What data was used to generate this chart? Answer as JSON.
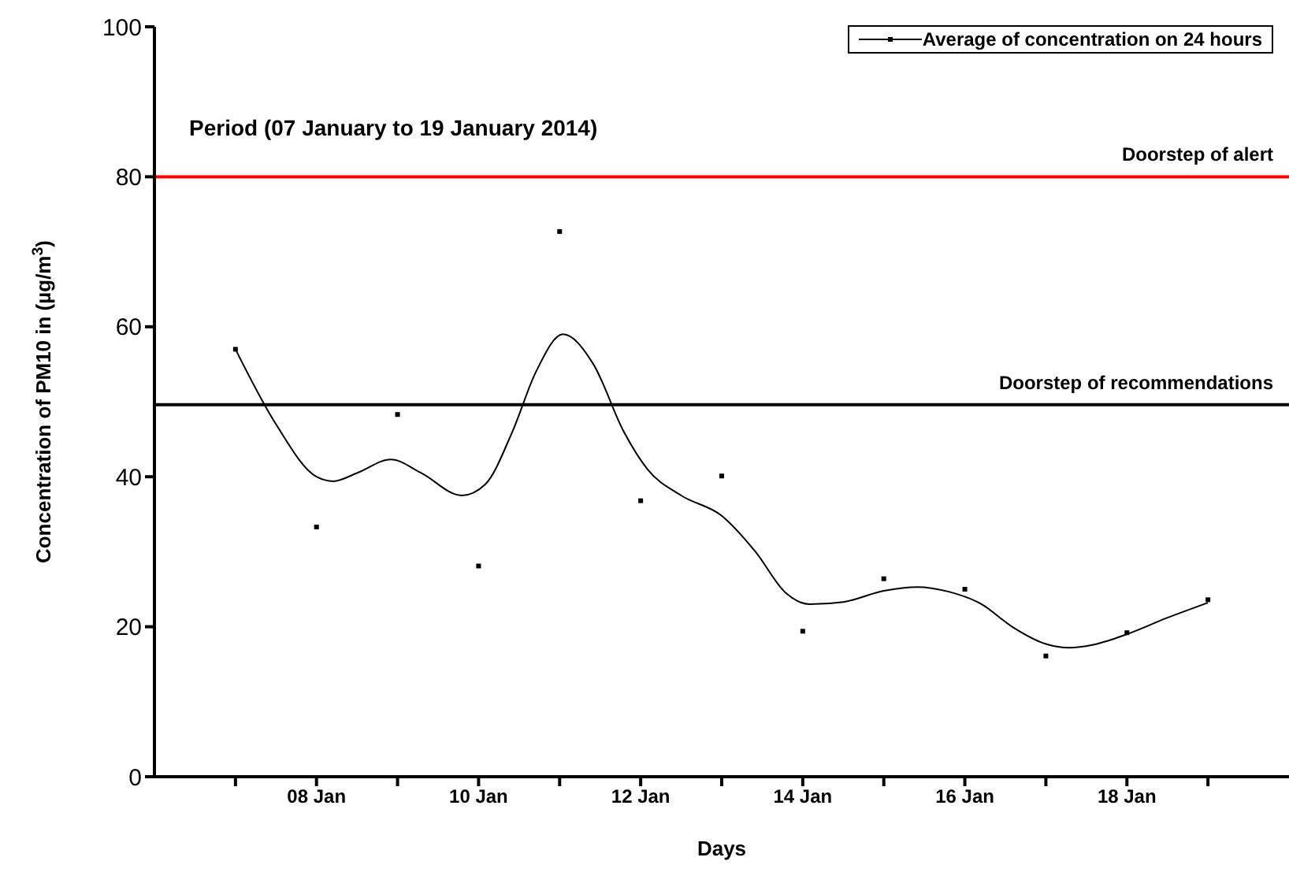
{
  "chart_data": {
    "type": "scatter",
    "xlabel": "Days",
    "ylabel": "Concentration of PM10 in (µg/m$^{3}$)",
    "annotations": [
      "Period (07 January to 19 January 2014)"
    ],
    "x": [
      "2014-01-07",
      "2014-01-08",
      "2014-01-09",
      "2014-01-10",
      "2014-01-11",
      "2014-01-12",
      "2014-01-13",
      "2014-01-14",
      "2014-01-15",
      "2014-01-16",
      "2014-01-17",
      "2014-01-18",
      "2014-01-19"
    ],
    "series": [
      {
        "name": "Average of concentration on 24 hours",
        "type": "scatter",
        "color": "#000000",
        "marker": "square",
        "values": [
          57,
          33.3,
          48.3,
          28.1,
          72.7,
          36.8,
          40.1,
          19.4,
          26.4,
          25,
          16.1,
          19.2,
          23.6
        ]
      },
      {
        "type": "line",
        "color": "#000000",
        "marker": "none",
        "line_style": "solid",
        "x": [
          "2014-01-07T00:00",
          "2014-01-07T12:00",
          "2014-01-08T00:00",
          "2014-01-08T05:00",
          "2014-01-08T12:00",
          "2014-01-08T22:00",
          "2014-01-09T07:00",
          "2014-01-09T19:00",
          "2014-01-10T02:00",
          "2014-01-10T10:00",
          "2014-01-10T17:00",
          "2014-01-11T01:00",
          "2014-01-11T10:00",
          "2014-01-11T19:00",
          "2014-01-12T02:00",
          "2014-01-12T12:00",
          "2014-01-13T00:00",
          "2014-01-13T10:00",
          "2014-01-13T19:00",
          "2014-01-14T02:00",
          "2014-01-14T12:00",
          "2014-01-15T00:00",
          "2014-01-15T10:00",
          "2014-01-15T19:00",
          "2014-01-16T05:00",
          "2014-01-16T14:00",
          "2014-01-17T00:00",
          "2014-01-17T07:00",
          "2014-01-17T14:00",
          "2014-01-18T00:00",
          "2014-01-18T12:00",
          "2014-01-19T00:00"
        ],
        "values": [
          57,
          47,
          40,
          39.4,
          40.5,
          42.3,
          40.5,
          37.5,
          39,
          46,
          54,
          59,
          55,
          46,
          41,
          37.5,
          34.8,
          30,
          24.5,
          23,
          23.3,
          24.8,
          25.3,
          24.7,
          23,
          20,
          17.7,
          17.2,
          17.6,
          19,
          21.2,
          23.2
        ]
      }
    ],
    "ref_lines": [
      {
        "axis": "y",
        "value": 80,
        "label": "Doorstep of alert",
        "color": "#ff0000"
      },
      {
        "axis": "y",
        "value": 49.6,
        "label": "Doorstep of recommendations",
        "color": "#000000"
      }
    ],
    "xlim": [
      "2014-01-06",
      "2014-01-20"
    ],
    "xticks": [
      {
        "value": "2014-01-07",
        "label": null
      },
      {
        "value": "2014-01-08",
        "label": "08 Jan"
      },
      {
        "value": "2014-01-09",
        "label": null
      },
      {
        "value": "2014-01-10",
        "label": "10 Jan"
      },
      {
        "value": "2014-01-11",
        "label": null
      },
      {
        "value": "2014-01-12",
        "label": "12 Jan"
      },
      {
        "value": "2014-01-13",
        "label": null
      },
      {
        "value": "2014-01-14",
        "label": "14 Jan"
      },
      {
        "value": "2014-01-15",
        "label": null
      },
      {
        "value": "2014-01-16",
        "label": "16 Jan"
      },
      {
        "value": "2014-01-17",
        "label": null
      },
      {
        "value": "2014-01-18",
        "label": "18 Jan"
      },
      {
        "value": "2014-01-19",
        "label": null
      }
    ],
    "ylim": [
      0,
      100
    ],
    "yticks": [
      0,
      20,
      40,
      60,
      80,
      100
    ],
    "grid": false,
    "legend": "top right"
  }
}
